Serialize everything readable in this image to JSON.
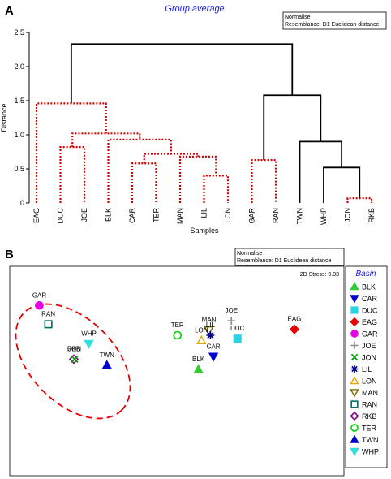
{
  "colors": {
    "red_cluster": "#d40000",
    "black_cluster": "#000000",
    "title_blue": "#1a1ae6",
    "legend_title": "#1a1ae6"
  },
  "panel_a": {
    "label": "A",
    "title": "Group average",
    "info_line1": "Normalise",
    "info_line2": "Resemblance: D1 Euclidean distance"
  },
  "panel_b": {
    "label": "B",
    "info_line1": "Normalise",
    "info_line2": "Resemblance: D1 Euclidean distance",
    "stress": "2D Stress: 0.03"
  },
  "chart_data": [
    {
      "type": "dendrogram",
      "title": "Group average",
      "xlabel": "Samples",
      "ylabel": "Distance",
      "ylim": [
        0,
        2.5
      ],
      "yticks": [
        0,
        0.5,
        1.0,
        1.5,
        2.0,
        2.5
      ],
      "ytick_labels": [
        "0",
        "0.5",
        "1.0",
        "1.5",
        "2.0",
        "2.5"
      ],
      "leaves": [
        "EAG",
        "DUC",
        "JOE",
        "BLK",
        "CAR",
        "TER",
        "MAN",
        "LIL",
        "LON",
        "GAR",
        "RAN",
        "TWN",
        "WHP",
        "JON",
        "RKB"
      ],
      "merges": [
        {
          "id": "m1",
          "a": "JON",
          "b": "RKB",
          "height": 0.07,
          "style": "dotted"
        },
        {
          "id": "m2",
          "a": "LIL",
          "b": "LON",
          "height": 0.4,
          "style": "dotted"
        },
        {
          "id": "m3",
          "a": "CAR",
          "b": "TER",
          "height": 0.58,
          "style": "dotted"
        },
        {
          "id": "m4",
          "a": "GAR",
          "b": "RAN",
          "height": 0.63,
          "style": "dotted"
        },
        {
          "id": "m5",
          "a": "WHP",
          "b": "m1",
          "height": 0.52,
          "style": "solid"
        },
        {
          "id": "m6",
          "a": "MAN",
          "b": "m2",
          "height": 0.68,
          "style": "dotted"
        },
        {
          "id": "m7",
          "a": "m3",
          "b": "m6",
          "height": 0.72,
          "style": "dotted"
        },
        {
          "id": "m8",
          "a": "DUC",
          "b": "JOE",
          "height": 0.82,
          "style": "dotted"
        },
        {
          "id": "m9",
          "a": "TWN",
          "b": "m5",
          "height": 0.9,
          "style": "solid"
        },
        {
          "id": "m10",
          "a": "BLK",
          "b": "m7",
          "height": 0.93,
          "style": "dotted"
        },
        {
          "id": "m11",
          "a": "m8",
          "b": "m10",
          "height": 1.02,
          "style": "dotted"
        },
        {
          "id": "m12",
          "a": "EAG",
          "b": "m11",
          "height": 1.46,
          "style": "dotted"
        },
        {
          "id": "m13",
          "a": "m4",
          "b": "m9",
          "height": 1.58,
          "style": "solid"
        },
        {
          "id": "m14",
          "a": "m12",
          "b": "m13",
          "height": 2.33,
          "style": "solid"
        }
      ]
    },
    {
      "type": "scatter",
      "title": "",
      "legend_title": "Basin",
      "legend_position": "right",
      "xlim": [
        -1.0,
        1.0
      ],
      "ylim": [
        -1.0,
        1.0
      ],
      "points": [
        {
          "label": "GAR",
          "x": -0.9,
          "y": 0.75,
          "symbol": "circle-filled",
          "color": "#e600e6"
        },
        {
          "label": "RAN",
          "x": -0.84,
          "y": 0.53,
          "symbol": "square-open",
          "color": "#006a6a"
        },
        {
          "label": "WHP",
          "x": -0.57,
          "y": 0.3,
          "symbol": "triangle-down-filled",
          "color": "#33dddd"
        },
        {
          "label": "RKB",
          "x": -0.67,
          "y": 0.12,
          "symbol": "diamond-open",
          "color": "#8b008b"
        },
        {
          "label": "JON",
          "x": -0.665,
          "y": 0.12,
          "symbol": "cross-x",
          "color": "#00a000"
        },
        {
          "label": "TWN",
          "x": -0.45,
          "y": 0.05,
          "symbol": "triangle-up-filled",
          "color": "#0000cc"
        },
        {
          "label": "TER",
          "x": 0.02,
          "y": 0.4,
          "symbol": "circle-open",
          "color": "#00cc00"
        },
        {
          "label": "MAN",
          "x": 0.23,
          "y": 0.46,
          "symbol": "triangle-down-open",
          "color": "#7a6a00"
        },
        {
          "label": "LIL",
          "x": 0.24,
          "y": 0.4,
          "symbol": "asterisk",
          "color": "#00008b"
        },
        {
          "label": "LON",
          "x": 0.18,
          "y": 0.34,
          "symbol": "triangle-up-open",
          "color": "#e6a500"
        },
        {
          "label": "CAR",
          "x": 0.26,
          "y": 0.15,
          "symbol": "triangle-down-filled",
          "color": "#0000cc"
        },
        {
          "label": "BLK",
          "x": 0.16,
          "y": 0.0,
          "symbol": "triangle-up-filled",
          "color": "#33cc33"
        },
        {
          "label": "JOE",
          "x": 0.38,
          "y": 0.57,
          "symbol": "plus",
          "color": "#888888"
        },
        {
          "label": "DUC",
          "x": 0.42,
          "y": 0.36,
          "symbol": "square-filled",
          "color": "#2ad4e6"
        },
        {
          "label": "EAG",
          "x": 0.8,
          "y": 0.47,
          "symbol": "diamond-filled",
          "color": "#e60000"
        }
      ],
      "legend": [
        {
          "label": "BLK",
          "symbol": "triangle-up-filled",
          "color": "#33cc33"
        },
        {
          "label": "CAR",
          "symbol": "triangle-down-filled",
          "color": "#0000cc"
        },
        {
          "label": "DUC",
          "symbol": "square-filled",
          "color": "#2ad4e6"
        },
        {
          "label": "EAG",
          "symbol": "diamond-filled",
          "color": "#e60000"
        },
        {
          "label": "GAR",
          "symbol": "circle-filled",
          "color": "#e600e6"
        },
        {
          "label": "JOE",
          "symbol": "plus",
          "color": "#888888"
        },
        {
          "label": "JON",
          "symbol": "cross-x",
          "color": "#00a000"
        },
        {
          "label": "LIL",
          "symbol": "asterisk",
          "color": "#00008b"
        },
        {
          "label": "LON",
          "symbol": "triangle-up-open",
          "color": "#e6a500"
        },
        {
          "label": "MAN",
          "symbol": "triangle-down-open",
          "color": "#7a6a00"
        },
        {
          "label": "RAN",
          "symbol": "square-open",
          "color": "#006a6a"
        },
        {
          "label": "RKB",
          "symbol": "diamond-open",
          "color": "#8b008b"
        },
        {
          "label": "TER",
          "symbol": "circle-open",
          "color": "#00cc00"
        },
        {
          "label": "TWN",
          "symbol": "triangle-up-filled",
          "color": "#0000cc"
        },
        {
          "label": "WHP",
          "symbol": "triangle-down-filled",
          "color": "#33dddd"
        }
      ],
      "grouping_ellipse": {
        "members": [
          "GAR",
          "RAN",
          "WHP",
          "RKB",
          "JON"
        ],
        "style": "dashed",
        "color": "#e60000"
      }
    }
  ]
}
